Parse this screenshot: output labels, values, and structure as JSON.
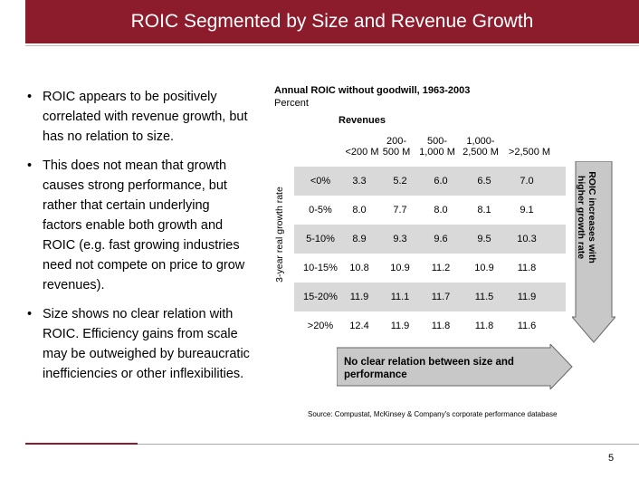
{
  "title": "ROIC Segmented by Size and Revenue Growth",
  "bullets": [
    "ROIC appears to be positively correlated with revenue growth, but has no relation to size.",
    "This does not mean that growth causes strong performance, but rather that certain underlying factors enable both growth and ROIC (e.g. fast growing industries need not compete on price to grow revenues).",
    "Size shows no clear relation with ROIC. Efficiency gains from scale may be outweighed by bureaucratic inefficiencies or other inflexibilities."
  ],
  "chart": {
    "title": "Annual ROIC without goodwill, 1963-2003",
    "subtitle": "Percent",
    "revenues_label": "Revenues",
    "y_axis_label": "3-year real growth rate",
    "columns": [
      {
        "line1": "",
        "line2": "<200 M"
      },
      {
        "line1": "200-",
        "line2": "500 M"
      },
      {
        "line1": "500-",
        "line2": "1,000 M"
      },
      {
        "line1": "1,000-",
        "line2": "2,500 M"
      },
      {
        "line1": "",
        "line2": ">2,500 M"
      }
    ],
    "rows": [
      {
        "label": "<0%",
        "values": [
          "3.3",
          "5.2",
          "6.0",
          "6.5",
          "7.0"
        ]
      },
      {
        "label": "0-5%",
        "values": [
          "8.0",
          "7.7",
          "8.0",
          "8.1",
          "9.1"
        ]
      },
      {
        "label": "5-10%",
        "values": [
          "8.9",
          "9.3",
          "9.6",
          "9.5",
          "10.3"
        ]
      },
      {
        "label": "10-15%",
        "values": [
          "10.8",
          "10.9",
          "11.2",
          "10.9",
          "11.8"
        ]
      },
      {
        "label": "15-20%",
        "values": [
          "11.9",
          "11.1",
          "11.7",
          "11.5",
          "11.9"
        ]
      },
      {
        "label": ">20%",
        "values": [
          "12.4",
          "11.9",
          "11.8",
          "11.8",
          "11.6"
        ]
      }
    ],
    "down_arrow_text": "ROIC increases with higher growth rate",
    "right_arrow_text": "No clear relation between size and performance"
  },
  "source": "Source: Compustat, McKinsey & Company's corporate performance database",
  "page_number": "5",
  "colors": {
    "accent": "#8c1c2c",
    "shade": "#d9d9d9",
    "arrow": "#c8c8c8"
  }
}
